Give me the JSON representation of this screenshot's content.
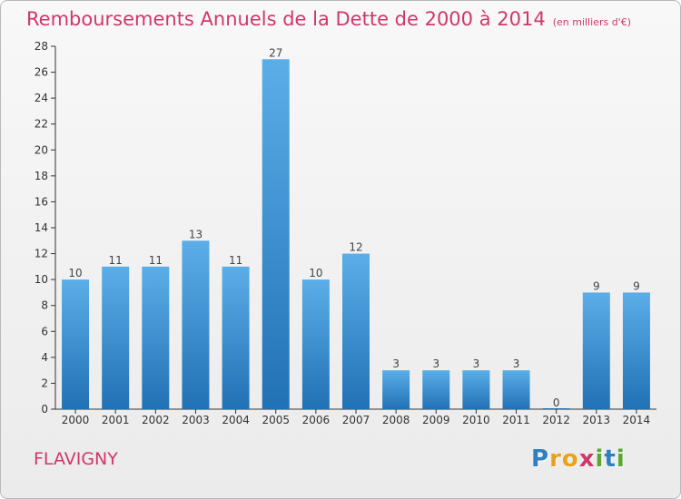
{
  "chart_data": {
    "type": "bar",
    "title": "Remboursements Annuels de la Dette de 2000 à 2014",
    "subtitle": "(en milliers d'€)",
    "categories": [
      "2000",
      "2001",
      "2002",
      "2003",
      "2004",
      "2005",
      "2006",
      "2007",
      "2008",
      "2009",
      "2010",
      "2011",
      "2012",
      "2013",
      "2014"
    ],
    "values": [
      10,
      11,
      11,
      13,
      11,
      27,
      10,
      12,
      3,
      3,
      3,
      3,
      0,
      9,
      9
    ],
    "data_labels": [
      "10",
      "11",
      "11",
      "13",
      "11",
      "27",
      "10",
      "12",
      "3",
      "3",
      "3",
      "3",
      "0",
      "9",
      "9"
    ],
    "xlabel": "",
    "ylabel": "",
    "ylim": [
      0,
      28
    ],
    "yticks": [
      0,
      2,
      4,
      6,
      8,
      10,
      12,
      14,
      16,
      18,
      20,
      22,
      24,
      26,
      28
    ],
    "grid": false,
    "legend": "none"
  },
  "commune": "FLAVIGNY",
  "logo": {
    "letters": [
      "P",
      "r",
      "o",
      "x",
      "i",
      "t",
      "i"
    ],
    "colors": [
      "#2f7fc1",
      "#e8a21c",
      "#e8a21c",
      "#d2366a",
      "#5aa832",
      "#2f7fc1",
      "#5aa832"
    ]
  },
  "colors": {
    "bar_top": "#5baee8",
    "bar_bottom": "#2171b5",
    "accent": "#d2366a",
    "axis": "#333333"
  }
}
